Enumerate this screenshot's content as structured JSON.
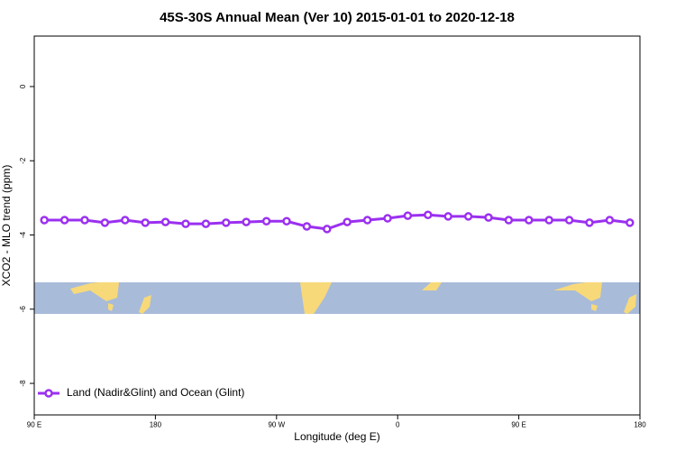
{
  "chart_data": {
    "type": "line",
    "title": "45S-30S Annual Mean (Ver 10)   2015-01-01 to 2020-12-18",
    "x_label": "Longitude (deg E)",
    "y_label": "XCO2 - MLO trend (ppm)",
    "x": [
      97.5,
      112.5,
      127.5,
      142.5,
      157.5,
      172.5,
      187.5,
      202.5,
      217.5,
      232.5,
      247.5,
      262.5,
      277.5,
      292.5,
      307.5,
      322.5,
      337.5,
      352.5,
      367.5,
      382.5,
      397.5,
      412.5,
      427.5,
      442.5,
      457.5,
      472.5,
      487.5,
      502.5,
      517.5,
      532.5
    ],
    "series": [
      {
        "name": "Land (Nadir&Glint) and Ocean (Glint)",
        "color": "#9b30f0",
        "values": [
          -3.6,
          -3.6,
          -3.6,
          -3.67,
          -3.6,
          -3.67,
          -3.65,
          -3.7,
          -3.7,
          -3.67,
          -3.65,
          -3.63,
          -3.63,
          -3.77,
          -3.84,
          -3.65,
          -3.6,
          -3.55,
          -3.48,
          -3.46,
          -3.5,
          -3.5,
          -3.53,
          -3.6,
          -3.6,
          -3.6,
          -3.6,
          -3.67,
          -3.6,
          -3.67
        ]
      }
    ],
    "xlim": [
      90,
      540
    ],
    "ylim": [
      -8.85,
      1.36
    ],
    "xticks": [
      {
        "value": 90,
        "label": "90 E"
      },
      {
        "value": 180,
        "label": "180"
      },
      {
        "value": 270,
        "label": "90 W"
      },
      {
        "value": 360,
        "label": "0"
      },
      {
        "value": 450,
        "label": "90 E"
      },
      {
        "value": 540,
        "label": "180"
      }
    ],
    "yticks": [
      0,
      -2,
      -4,
      -6,
      -8
    ],
    "legend": "bottom-left"
  }
}
